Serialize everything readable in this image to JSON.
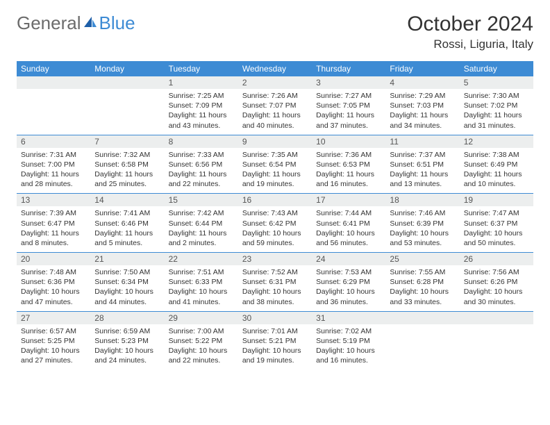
{
  "logo": {
    "text_general": "General",
    "text_blue": "Blue"
  },
  "header": {
    "month_title": "October 2024",
    "location": "Rossi, Liguria, Italy"
  },
  "colors": {
    "header_bar": "#3d8bd4",
    "day_number_bg": "#eceeee",
    "week_divider": "#3d8bd4",
    "text": "#333333",
    "logo_gray": "#6b6b6b",
    "logo_blue": "#3d8bd4"
  },
  "weekdays": [
    "Sunday",
    "Monday",
    "Tuesday",
    "Wednesday",
    "Thursday",
    "Friday",
    "Saturday"
  ],
  "weeks": [
    [
      null,
      null,
      {
        "n": "1",
        "sr": "Sunrise: 7:25 AM",
        "ss": "Sunset: 7:09 PM",
        "dl": "Daylight: 11 hours and 43 minutes."
      },
      {
        "n": "2",
        "sr": "Sunrise: 7:26 AM",
        "ss": "Sunset: 7:07 PM",
        "dl": "Daylight: 11 hours and 40 minutes."
      },
      {
        "n": "3",
        "sr": "Sunrise: 7:27 AM",
        "ss": "Sunset: 7:05 PM",
        "dl": "Daylight: 11 hours and 37 minutes."
      },
      {
        "n": "4",
        "sr": "Sunrise: 7:29 AM",
        "ss": "Sunset: 7:03 PM",
        "dl": "Daylight: 11 hours and 34 minutes."
      },
      {
        "n": "5",
        "sr": "Sunrise: 7:30 AM",
        "ss": "Sunset: 7:02 PM",
        "dl": "Daylight: 11 hours and 31 minutes."
      }
    ],
    [
      {
        "n": "6",
        "sr": "Sunrise: 7:31 AM",
        "ss": "Sunset: 7:00 PM",
        "dl": "Daylight: 11 hours and 28 minutes."
      },
      {
        "n": "7",
        "sr": "Sunrise: 7:32 AM",
        "ss": "Sunset: 6:58 PM",
        "dl": "Daylight: 11 hours and 25 minutes."
      },
      {
        "n": "8",
        "sr": "Sunrise: 7:33 AM",
        "ss": "Sunset: 6:56 PM",
        "dl": "Daylight: 11 hours and 22 minutes."
      },
      {
        "n": "9",
        "sr": "Sunrise: 7:35 AM",
        "ss": "Sunset: 6:54 PM",
        "dl": "Daylight: 11 hours and 19 minutes."
      },
      {
        "n": "10",
        "sr": "Sunrise: 7:36 AM",
        "ss": "Sunset: 6:53 PM",
        "dl": "Daylight: 11 hours and 16 minutes."
      },
      {
        "n": "11",
        "sr": "Sunrise: 7:37 AM",
        "ss": "Sunset: 6:51 PM",
        "dl": "Daylight: 11 hours and 13 minutes."
      },
      {
        "n": "12",
        "sr": "Sunrise: 7:38 AM",
        "ss": "Sunset: 6:49 PM",
        "dl": "Daylight: 11 hours and 10 minutes."
      }
    ],
    [
      {
        "n": "13",
        "sr": "Sunrise: 7:39 AM",
        "ss": "Sunset: 6:47 PM",
        "dl": "Daylight: 11 hours and 8 minutes."
      },
      {
        "n": "14",
        "sr": "Sunrise: 7:41 AM",
        "ss": "Sunset: 6:46 PM",
        "dl": "Daylight: 11 hours and 5 minutes."
      },
      {
        "n": "15",
        "sr": "Sunrise: 7:42 AM",
        "ss": "Sunset: 6:44 PM",
        "dl": "Daylight: 11 hours and 2 minutes."
      },
      {
        "n": "16",
        "sr": "Sunrise: 7:43 AM",
        "ss": "Sunset: 6:42 PM",
        "dl": "Daylight: 10 hours and 59 minutes."
      },
      {
        "n": "17",
        "sr": "Sunrise: 7:44 AM",
        "ss": "Sunset: 6:41 PM",
        "dl": "Daylight: 10 hours and 56 minutes."
      },
      {
        "n": "18",
        "sr": "Sunrise: 7:46 AM",
        "ss": "Sunset: 6:39 PM",
        "dl": "Daylight: 10 hours and 53 minutes."
      },
      {
        "n": "19",
        "sr": "Sunrise: 7:47 AM",
        "ss": "Sunset: 6:37 PM",
        "dl": "Daylight: 10 hours and 50 minutes."
      }
    ],
    [
      {
        "n": "20",
        "sr": "Sunrise: 7:48 AM",
        "ss": "Sunset: 6:36 PM",
        "dl": "Daylight: 10 hours and 47 minutes."
      },
      {
        "n": "21",
        "sr": "Sunrise: 7:50 AM",
        "ss": "Sunset: 6:34 PM",
        "dl": "Daylight: 10 hours and 44 minutes."
      },
      {
        "n": "22",
        "sr": "Sunrise: 7:51 AM",
        "ss": "Sunset: 6:33 PM",
        "dl": "Daylight: 10 hours and 41 minutes."
      },
      {
        "n": "23",
        "sr": "Sunrise: 7:52 AM",
        "ss": "Sunset: 6:31 PM",
        "dl": "Daylight: 10 hours and 38 minutes."
      },
      {
        "n": "24",
        "sr": "Sunrise: 7:53 AM",
        "ss": "Sunset: 6:29 PM",
        "dl": "Daylight: 10 hours and 36 minutes."
      },
      {
        "n": "25",
        "sr": "Sunrise: 7:55 AM",
        "ss": "Sunset: 6:28 PM",
        "dl": "Daylight: 10 hours and 33 minutes."
      },
      {
        "n": "26",
        "sr": "Sunrise: 7:56 AM",
        "ss": "Sunset: 6:26 PM",
        "dl": "Daylight: 10 hours and 30 minutes."
      }
    ],
    [
      {
        "n": "27",
        "sr": "Sunrise: 6:57 AM",
        "ss": "Sunset: 5:25 PM",
        "dl": "Daylight: 10 hours and 27 minutes."
      },
      {
        "n": "28",
        "sr": "Sunrise: 6:59 AM",
        "ss": "Sunset: 5:23 PM",
        "dl": "Daylight: 10 hours and 24 minutes."
      },
      {
        "n": "29",
        "sr": "Sunrise: 7:00 AM",
        "ss": "Sunset: 5:22 PM",
        "dl": "Daylight: 10 hours and 22 minutes."
      },
      {
        "n": "30",
        "sr": "Sunrise: 7:01 AM",
        "ss": "Sunset: 5:21 PM",
        "dl": "Daylight: 10 hours and 19 minutes."
      },
      {
        "n": "31",
        "sr": "Sunrise: 7:02 AM",
        "ss": "Sunset: 5:19 PM",
        "dl": "Daylight: 10 hours and 16 minutes."
      },
      null,
      null
    ]
  ]
}
